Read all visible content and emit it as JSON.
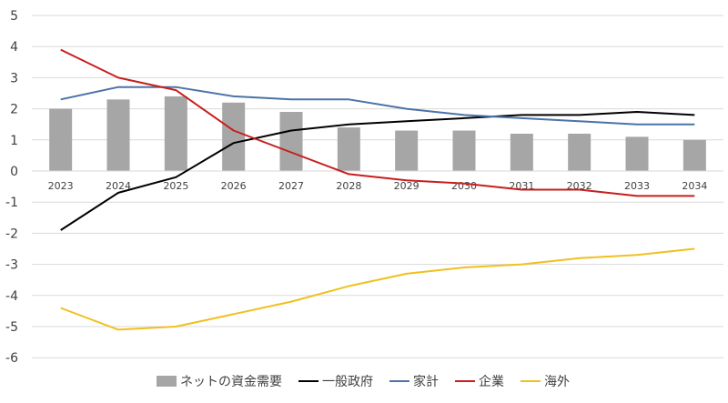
{
  "chart_data": {
    "type": "bar+line",
    "categories": [
      "2023",
      "2024",
      "2025",
      "2026",
      "2027",
      "2028",
      "2029",
      "2030",
      "2031",
      "2032",
      "2033",
      "2034"
    ],
    "yticks": [
      "5",
      "4",
      "3",
      "2",
      "1",
      "0",
      "-1",
      "-2",
      "-3",
      "-4",
      "-5",
      "-6"
    ],
    "ylim": [
      -6,
      5
    ],
    "grid": true,
    "legend_position": "bottom",
    "bar_series": {
      "name": "ネットの資金需要",
      "color": "#a6a6a6",
      "values": [
        2.0,
        2.3,
        2.4,
        2.2,
        1.9,
        1.4,
        1.3,
        1.3,
        1.2,
        1.2,
        1.1,
        1.0
      ]
    },
    "line_series": [
      {
        "name": "一般政府",
        "color": "#000000",
        "values": [
          -1.9,
          -0.7,
          -0.2,
          0.9,
          1.3,
          1.5,
          1.6,
          1.7,
          1.8,
          1.8,
          1.9,
          1.8
        ]
      },
      {
        "name": "家計",
        "color": "#4a73a8",
        "values": [
          2.3,
          2.7,
          2.7,
          2.4,
          2.3,
          2.3,
          2.0,
          1.8,
          1.7,
          1.6,
          1.5,
          1.5
        ]
      },
      {
        "name": "企業",
        "color": "#c81e1e",
        "values": [
          3.9,
          3.0,
          2.6,
          1.3,
          0.6,
          -0.1,
          -0.3,
          -0.4,
          -0.6,
          -0.6,
          -0.8,
          -0.8
        ]
      },
      {
        "name": "海外",
        "color": "#f0c020",
        "values": [
          -4.4,
          -5.1,
          -5.0,
          -4.6,
          -4.2,
          -3.7,
          -3.3,
          -3.1,
          -3.0,
          -2.8,
          -2.7,
          -2.5
        ]
      }
    ]
  }
}
